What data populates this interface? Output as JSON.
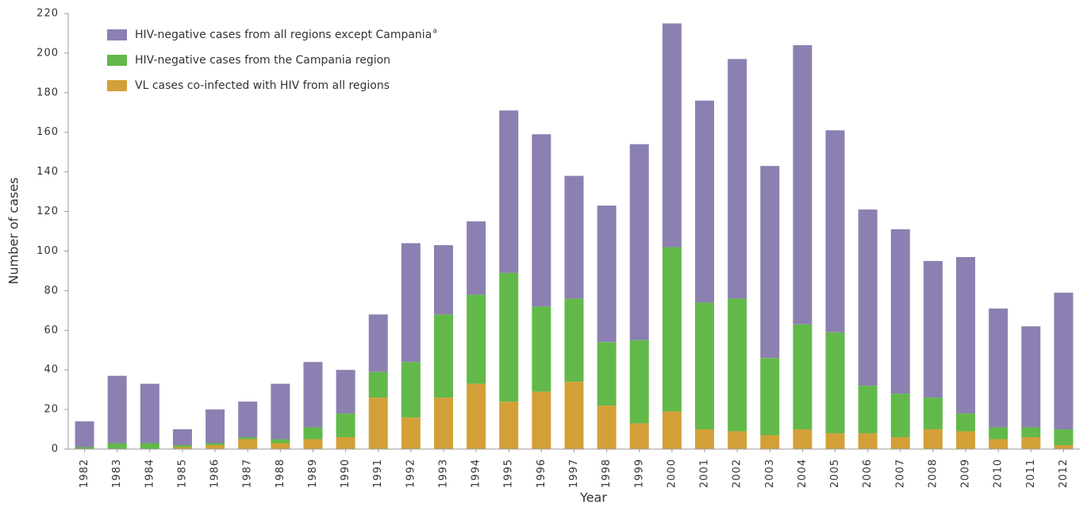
{
  "chart_data": {
    "type": "stacked_bar",
    "xlabel": "Year",
    "ylabel": "Number of cases",
    "categories": [
      "1982",
      "1983",
      "1984",
      "1985",
      "1986",
      "1987",
      "1988",
      "1989",
      "1990",
      "1991",
      "1992",
      "1993",
      "1994",
      "1995",
      "1996",
      "1997",
      "1998",
      "1999",
      "2000",
      "2001",
      "2002",
      "2003",
      "2004",
      "2005",
      "2006",
      "2007",
      "2008",
      "2009",
      "2010",
      "2011",
      "2012"
    ],
    "series": [
      {
        "name": "HIV-negative cases from all regions except Campania",
        "footnote_marker": "a",
        "color": "#8b80b1",
        "values": [
          13,
          34,
          30,
          8,
          17,
          18,
          28,
          33,
          22,
          29,
          60,
          35,
          37,
          82,
          87,
          62,
          69,
          99,
          113,
          102,
          121,
          97,
          141,
          102,
          89,
          83,
          69,
          79,
          60,
          51,
          69
        ]
      },
      {
        "name": "HIV-negative cases from the Campania region",
        "color": "#62b94a",
        "values": [
          1,
          3,
          3,
          1,
          1,
          1,
          2,
          6,
          12,
          13,
          28,
          42,
          45,
          65,
          43,
          42,
          32,
          42,
          83,
          64,
          67,
          39,
          53,
          51,
          24,
          22,
          16,
          9,
          6,
          5,
          8
        ]
      },
      {
        "name": "VL cases co-infected with HIV from all regions",
        "color": "#d3a038",
        "values": [
          0,
          0,
          0,
          1,
          2,
          5,
          3,
          5,
          6,
          26,
          16,
          26,
          33,
          24,
          29,
          34,
          22,
          13,
          19,
          10,
          9,
          7,
          10,
          8,
          8,
          6,
          10,
          9,
          5,
          6,
          2
        ]
      }
    ],
    "ylim": [
      0,
      220
    ],
    "yticks": [
      0,
      20,
      40,
      60,
      80,
      100,
      120,
      140,
      160,
      180,
      200,
      220
    ]
  }
}
